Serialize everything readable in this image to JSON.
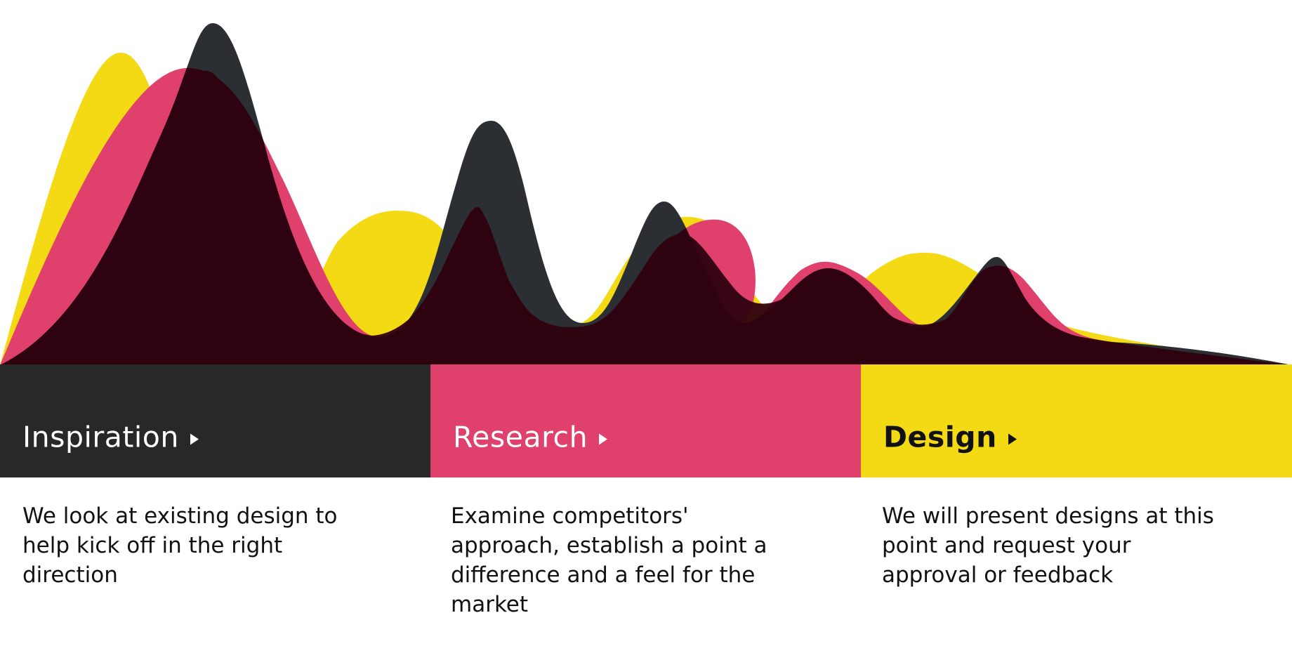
{
  "colors": {
    "yellow": "#f4da14",
    "pink": "#e0406c",
    "dark": "#2b2f33",
    "overlap": "#2e0210",
    "panel_dark": "#282828"
  },
  "stages": [
    {
      "title": "Inspiration",
      "arrow_icon": "play-triangle-icon",
      "description": "We look at existing design to help kick off in the right direction"
    },
    {
      "title": "Research",
      "arrow_icon": "play-triangle-icon",
      "description": "Examine competitors' approach, establish a point a difference and a feel for the market"
    },
    {
      "title": "Design",
      "arrow_icon": "play-triangle-icon",
      "description": "We will present designs at this point and request your approval or feedback"
    }
  ]
}
